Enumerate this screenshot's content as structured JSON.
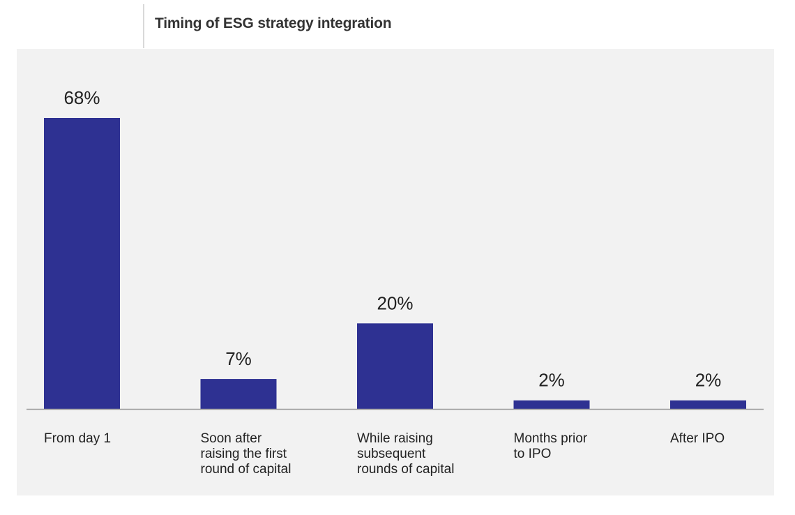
{
  "chart_data": {
    "type": "bar",
    "title": "Timing of ESG strategy integration",
    "categories": [
      [
        "From day 1"
      ],
      [
        "Soon after",
        "raising the first",
        "round of capital"
      ],
      [
        "While raising",
        "subsequent",
        "rounds of capital"
      ],
      [
        "Months prior",
        "to IPO"
      ],
      [
        "After IPO"
      ]
    ],
    "values": [
      68,
      7,
      20,
      2,
      2
    ],
    "value_labels": [
      "68%",
      "7%",
      "20%",
      "2%",
      "2%"
    ],
    "unit": "%",
    "ylim": [
      0,
      68
    ],
    "grid": false,
    "legend": "none",
    "colors": {
      "bar": "#2e3192",
      "axis": "#9a9a9a",
      "text": "#222222",
      "background": "#f2f2f2"
    }
  }
}
